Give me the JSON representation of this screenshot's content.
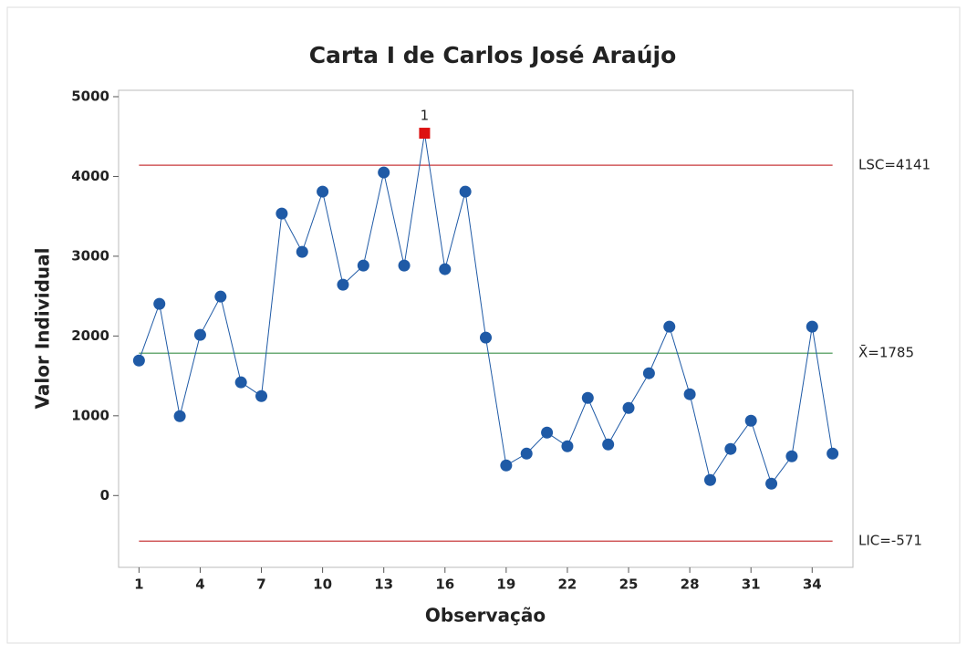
{
  "chart_data": {
    "type": "line",
    "title": "Carta I de Carlos José Araújo",
    "x_label": "Observação",
    "y_label": "Valor Individual",
    "x": [
      1,
      2,
      3,
      4,
      5,
      6,
      7,
      8,
      9,
      10,
      11,
      12,
      13,
      14,
      15,
      16,
      17,
      18,
      19,
      20,
      21,
      22,
      23,
      24,
      25,
      26,
      27,
      28,
      29,
      30,
      31,
      32,
      33,
      34,
      35
    ],
    "series": [
      {
        "name": "Valor Individual",
        "color": "#1f5aa6",
        "values": [
          1693,
          2403,
          995,
          2014,
          2494,
          1419,
          1247,
          3535,
          3055,
          3810,
          2643,
          2883,
          4050,
          2883,
          4542,
          2838,
          3810,
          1980,
          378,
          526,
          789,
          618,
          1224,
          641,
          1098,
          1533,
          2117,
          1270,
          195,
          584,
          938,
          149,
          492,
          2117,
          526
        ]
      }
    ],
    "control_lines": [
      {
        "label": "LSC=4141",
        "value": 4141,
        "color": "#c8393b"
      },
      {
        "label": "X̄=1785",
        "value": 1785,
        "color": "#3b8f48"
      },
      {
        "label": "LIC=-571",
        "value": -571,
        "color": "#c8393b"
      }
    ],
    "out_of_control": [
      {
        "x": 15,
        "label": "1",
        "color": "#dd1111"
      }
    ],
    "xlim": [
      0,
      36
    ],
    "xticks": [
      1,
      4,
      7,
      10,
      13,
      16,
      19,
      22,
      25,
      28,
      31,
      34
    ],
    "ylim": [
      -900,
      5080
    ],
    "yticks": [
      0,
      1000,
      2000,
      3000,
      4000,
      5000
    ],
    "grid": false
  }
}
